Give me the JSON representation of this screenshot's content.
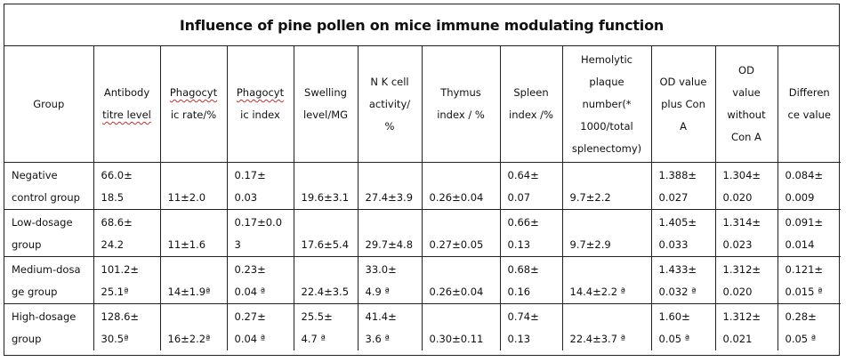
{
  "title": "Influence of pine pollen on mice immune modulating function",
  "headers": [
    [
      "Group"
    ],
    [
      "Antibody",
      "titre level"
    ],
    [
      "Phagocyt",
      "ic rate/%"
    ],
    [
      "Phagocyt",
      "ic index"
    ],
    [
      "Swelling",
      "level/MG"
    ],
    [
      "N K cell",
      "activity/",
      "%"
    ],
    [
      "Thymus",
      "index / %"
    ],
    [
      "Spleen",
      "index /%"
    ],
    [
      "Hemolytic",
      "plaque",
      "number(*",
      "1000/total",
      "splenectomy)"
    ],
    [
      "OD value",
      "plus Con",
      "A"
    ],
    [
      "OD",
      "value",
      "without",
      "Con A"
    ],
    [
      "Differen",
      "ce value"
    ]
  ],
  "rows": [
    [
      [
        "Negative",
        "control group"
      ],
      [
        "66.0±",
        "18.5"
      ],
      [
        "",
        "11±2.0"
      ],
      [
        "0.17±",
        "0.03"
      ],
      [
        "",
        "19.6±3.1"
      ],
      [
        "",
        "27.4±3.9"
      ],
      [
        "",
        "0.26±0.04"
      ],
      [
        "0.64±",
        "0.07"
      ],
      [
        "",
        "9.7±2.2"
      ],
      [
        "1.388±",
        "0.027"
      ],
      [
        "1.304±",
        "0.020"
      ],
      [
        "0.084±",
        "0.009"
      ]
    ],
    [
      [
        "Low-dosage",
        "group"
      ],
      [
        "68.6±",
        "24.2"
      ],
      [
        "",
        "11±1.6"
      ],
      [
        "0.17±0.0",
        "3"
      ],
      [
        "",
        "17.6±5.4"
      ],
      [
        "",
        "29.7±4.8"
      ],
      [
        "",
        "0.27±0.05"
      ],
      [
        "0.66±",
        "0.13"
      ],
      [
        "",
        "9.7±2.9"
      ],
      [
        "1.405±",
        "0.033"
      ],
      [
        "1.314±",
        "0.023"
      ],
      [
        "0.091±",
        "0.014"
      ]
    ],
    [
      [
        "Medium-dosa",
        "ge group"
      ],
      [
        "101.2±",
        "25.1ª"
      ],
      [
        "",
        "14±1.9ª"
      ],
      [
        "0.23±",
        "0.04 ª"
      ],
      [
        "",
        "22.4±3.5"
      ],
      [
        "33.0±",
        "4.9 ª"
      ],
      [
        "",
        "0.26±0.04"
      ],
      [
        "0.68±",
        "0.16"
      ],
      [
        "",
        "14.4±2.2 ª"
      ],
      [
        "1.433±",
        "0.032 ª"
      ],
      [
        "1.312±",
        "0.020"
      ],
      [
        "0.121±",
        "0.015 ª"
      ]
    ],
    [
      [
        "High-dosage",
        "group"
      ],
      [
        "128.6±",
        "30.5ª"
      ],
      [
        "",
        "16±2.2ª"
      ],
      [
        "0.27±",
        "0.04 ª"
      ],
      [
        "25.5±",
        "4.7 ª"
      ],
      [
        "41.4±",
        "3.6 ª"
      ],
      [
        "",
        "0.30±0.11"
      ],
      [
        "0.74±",
        "0.13"
      ],
      [
        "",
        "22.4±3.7 ª"
      ],
      [
        "1.60±",
        "0.05 ª"
      ],
      [
        "1.312±",
        "0.021"
      ],
      [
        "0.28±",
        "0.05 ª"
      ]
    ]
  ]
}
